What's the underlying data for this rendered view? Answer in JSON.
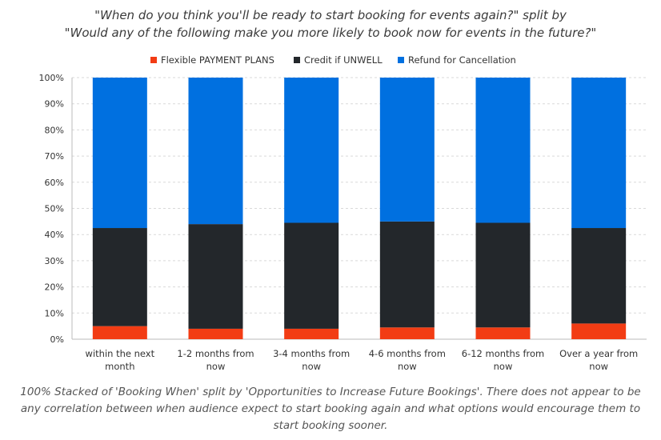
{
  "title_lines": [
    "\"When do you think you'll be ready to start booking for events again?\" split by",
    "\"Would any of the following make you more likely to book now for events in the future?\""
  ],
  "caption": "100% Stacked of 'Booking When' split by 'Opportunities to Increase Future Bookings'. There does not appear to be any correlation between when audience expect to start booking again and what options would encourage them to start booking sooner.",
  "chart_data": {
    "type": "bar",
    "stacked": "percent",
    "categories": [
      [
        "within the next",
        "month"
      ],
      [
        "1-2 months from",
        "now"
      ],
      [
        "3-4 months from",
        "now"
      ],
      [
        "4-6 months from",
        "now"
      ],
      [
        "6-12 months from",
        "now"
      ],
      [
        "Over a year from",
        "now"
      ]
    ],
    "series": [
      {
        "name": "Flexible PAYMENT PLANS",
        "color": "#f23c14",
        "values": [
          5,
          4,
          4,
          4.5,
          4.5,
          6
        ]
      },
      {
        "name": "Credit if UNWELL",
        "color": "#23272b",
        "values": [
          37.5,
          40,
          40.5,
          40.5,
          40,
          36.5
        ]
      },
      {
        "name": "Refund for Cancellation",
        "color": "#0070e0",
        "values": [
          57.5,
          56,
          55.5,
          55,
          55.5,
          57.5
        ]
      }
    ],
    "ylim": [
      0,
      100
    ],
    "yticks": [
      "0%",
      "10%",
      "20%",
      "30%",
      "40%",
      "50%",
      "60%",
      "70%",
      "80%",
      "90%",
      "100%"
    ],
    "legend_position": "top",
    "grid": true
  }
}
